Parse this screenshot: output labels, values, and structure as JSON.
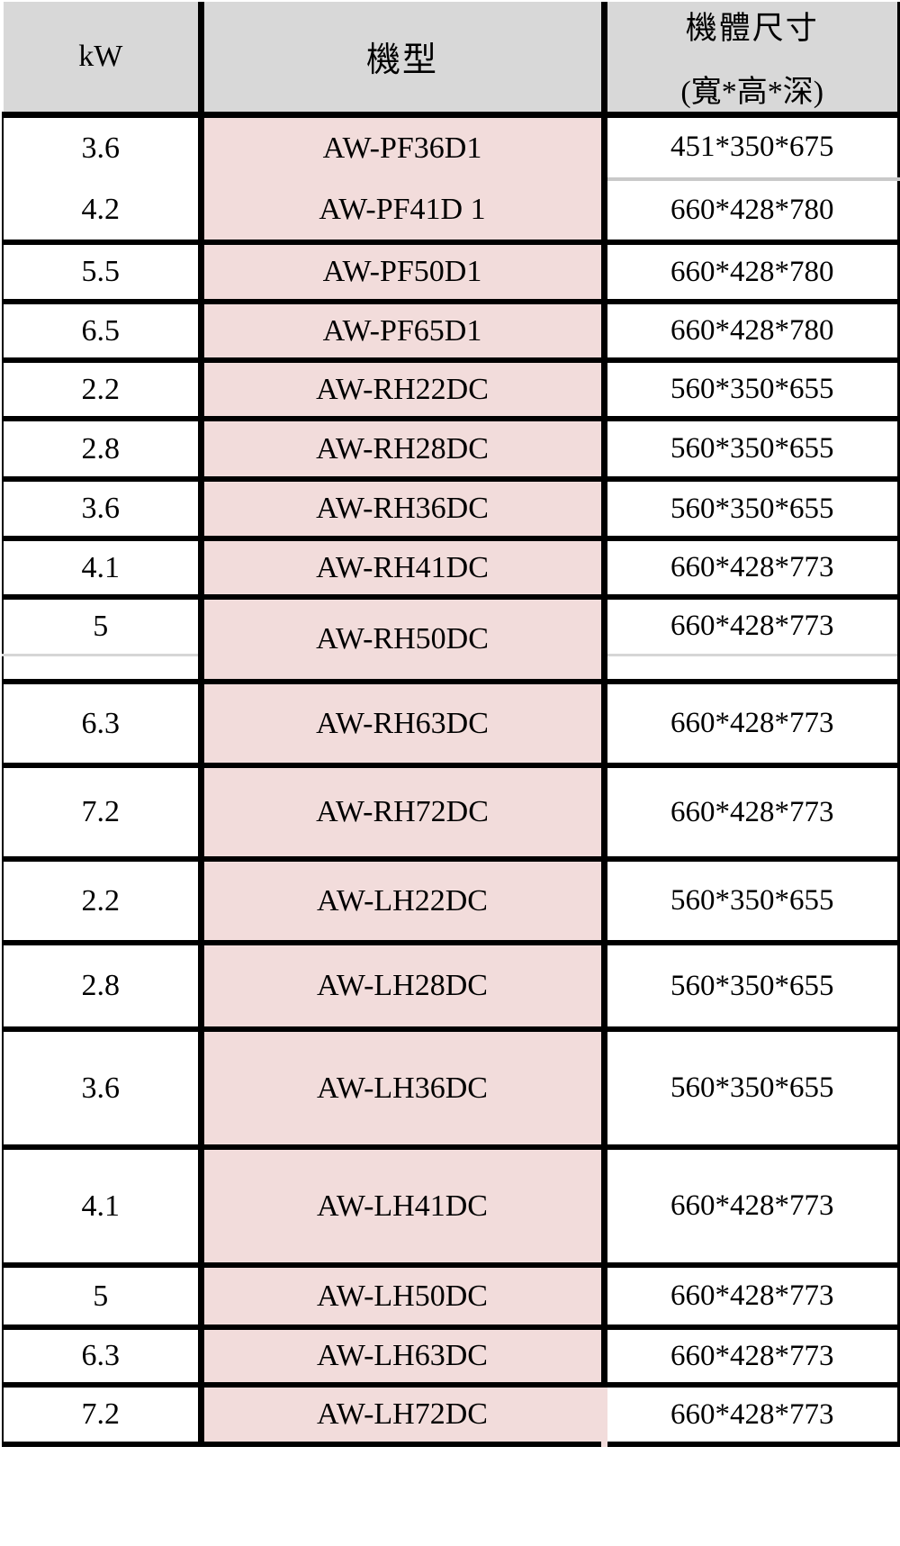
{
  "table": {
    "header": {
      "kw": "kW",
      "model": "機型",
      "dims_line1": "機體尺寸",
      "dims_line2": "(寬*高*深)"
    },
    "rows": [
      {
        "kw": "3.6",
        "model": "AW-PF36D1",
        "dims": "451*350*675"
      },
      {
        "kw": "4.2",
        "model": "AW-PF41D 1",
        "dims": "660*428*780"
      },
      {
        "kw": "5.5",
        "model": "AW-PF50D1",
        "dims": "660*428*780"
      },
      {
        "kw": "6.5",
        "model": "AW-PF65D1",
        "dims": "660*428*780"
      },
      {
        "kw": "2.2",
        "model": "AW-RH22DC",
        "dims": "560*350*655"
      },
      {
        "kw": "2.8",
        "model": "AW-RH28DC",
        "dims": "560*350*655"
      },
      {
        "kw": "3.6",
        "model": "AW-RH36DC",
        "dims": "560*350*655"
      },
      {
        "kw": "4.1",
        "model": "AW-RH41DC",
        "dims": "660*428*773"
      },
      {
        "kw": "5",
        "model": "AW-RH50DC",
        "dims": "660*428*773"
      },
      {
        "kw": "6.3",
        "model": "AW-RH63DC",
        "dims": "660*428*773"
      },
      {
        "kw": "7.2",
        "model": "AW-RH72DC",
        "dims": "660*428*773"
      },
      {
        "kw": "2.2",
        "model": "AW-LH22DC",
        "dims": "560*350*655"
      },
      {
        "kw": "2.8",
        "model": "AW-LH28DC",
        "dims": "560*350*655"
      },
      {
        "kw": "3.6",
        "model": "AW-LH36DC",
        "dims": "560*350*655"
      },
      {
        "kw": "4.1",
        "model": "AW-LH41DC",
        "dims": "660*428*773"
      },
      {
        "kw": "5",
        "model": "AW-LH50DC",
        "dims": "660*428*773"
      },
      {
        "kw": "6.3",
        "model": "AW-LH63DC",
        "dims": "660*428*773"
      },
      {
        "kw": "7.2",
        "model": "AW-LH72DC",
        "dims": "660*428*773"
      }
    ],
    "colors": {
      "header_bg": "#d8d8d8",
      "model_bg": "#f2dcdb",
      "border": "#000000",
      "faint_line": "#c9c9c9"
    }
  }
}
